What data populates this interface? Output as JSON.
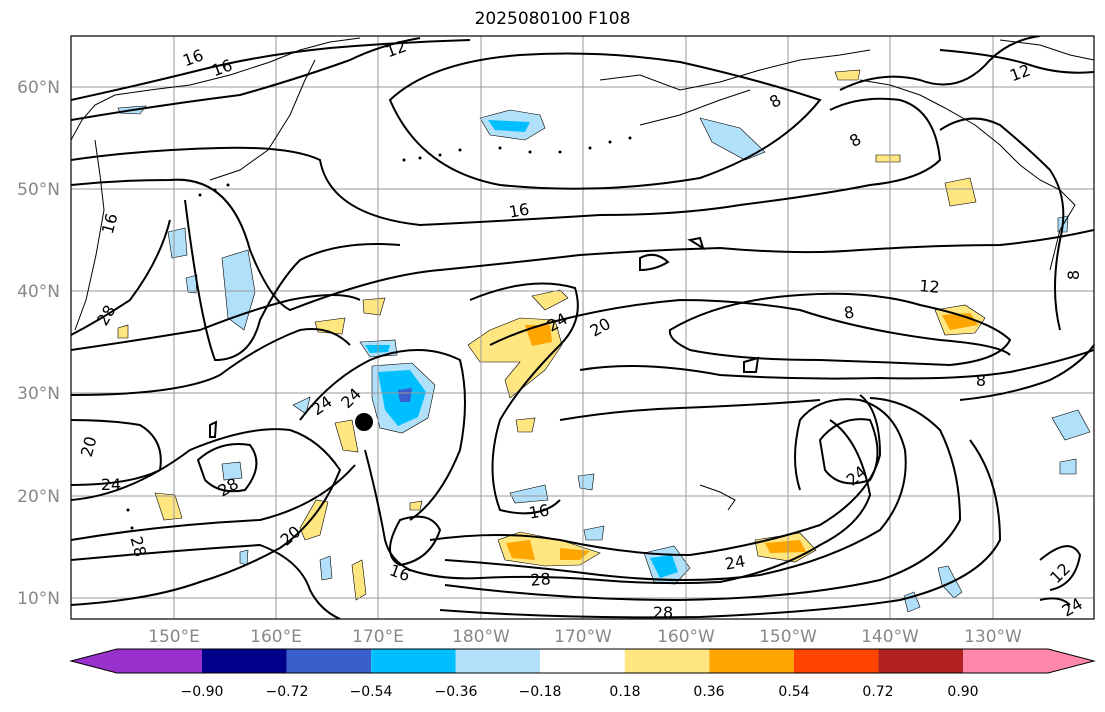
{
  "title": "2025080100 F108",
  "lat_labels": [
    "60°N",
    "50°N",
    "40°N",
    "30°N",
    "20°N",
    "10°N"
  ],
  "lon_labels": [
    "150°E",
    "160°E",
    "170°E",
    "180°W",
    "170°W",
    "160°W",
    "150°W",
    "140°W",
    "130°W"
  ],
  "contour_labels": [
    "16",
    "16",
    "12",
    "12",
    "8",
    "8",
    "16",
    "16",
    "28",
    "24",
    "20",
    "12",
    "8",
    "8",
    "24",
    "24",
    "20",
    "24",
    "28",
    "16",
    "20",
    "16",
    "28",
    "24",
    "24",
    "28",
    "28",
    "24",
    "12",
    "8"
  ],
  "colorbar": {
    "ticks": [
      "−0.90",
      "−0.72",
      "−0.54",
      "−0.36",
      "−0.18",
      "0.18",
      "0.36",
      "0.54",
      "0.72",
      "0.90"
    ],
    "colors": [
      "#9932cc",
      "#00008b",
      "#3a5fcd",
      "#00bfff",
      "#b0e0fa",
      "#ffffff",
      "#ffe680",
      "#ffa500",
      "#ff4500",
      "#b22222",
      "#ff88aa"
    ]
  },
  "marker": "storm-position-dot"
}
